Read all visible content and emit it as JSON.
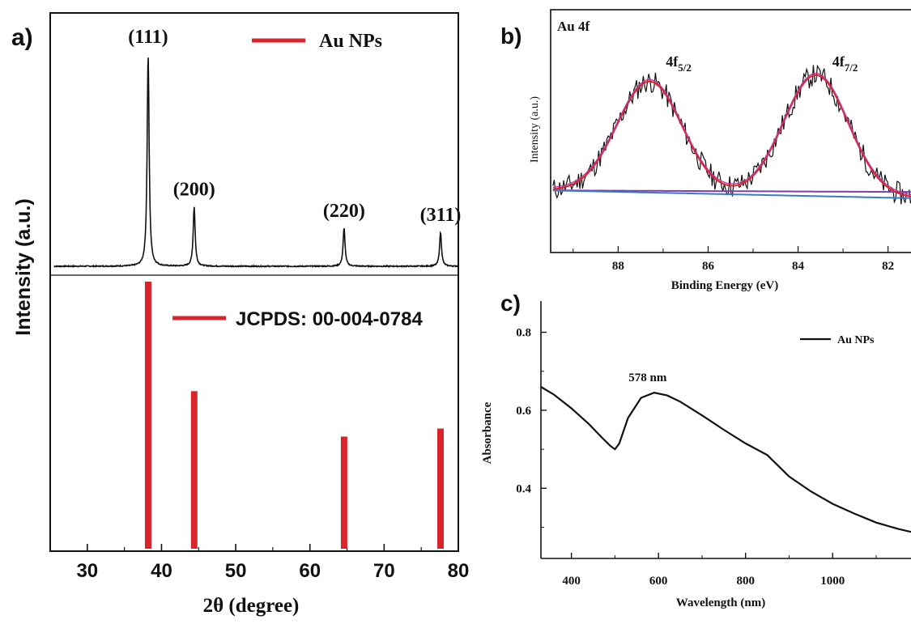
{
  "chart_data": [
    {
      "panel_label": "a)",
      "type": "line",
      "xlabel": "2θ (degree)",
      "ylabel": "Intensity (a.u.)",
      "xlim": [
        25,
        80
      ],
      "xticks": [
        30,
        40,
        50,
        60,
        70,
        80
      ],
      "x_tick_labels": [
        "30",
        "40",
        "50",
        "60",
        "70",
        "80"
      ],
      "series": [
        {
          "name": "Au NPs",
          "color": "#111111",
          "baseline": 0,
          "peaks": [
            {
              "x": 38.2,
              "y": 100,
              "label": "(111)"
            },
            {
              "x": 44.4,
              "y": 28,
              "label": "(200)"
            },
            {
              "x": 64.6,
              "y": 18,
              "label": "(220)"
            },
            {
              "x": 77.6,
              "y": 16,
              "label": "(311)"
            }
          ]
        },
        {
          "name": "JCPDS: 00-004-0784",
          "type": "stick",
          "color": "#d9242b",
          "x": [
            38.2,
            44.4,
            64.6,
            77.6
          ],
          "values": [
            100,
            59,
            42,
            45
          ]
        }
      ]
    },
    {
      "panel_label": "b)",
      "type": "line",
      "title": "Au 4f",
      "xlabel": "Binding Energy (eV)",
      "ylabel": "Intensity (a.u.)",
      "xlim": [
        89.5,
        81.4
      ],
      "x_reversed": true,
      "xticks": [
        88,
        86,
        84,
        82
      ],
      "x_tick_labels": [
        "88",
        "86",
        "84",
        "82"
      ],
      "annotations": [
        {
          "text": "4f",
          "sub": "5/2",
          "x": 87.3
        },
        {
          "text": "4f",
          "sub": "7/2",
          "x": 83.6
        }
      ],
      "series": [
        {
          "role": "raw",
          "color": "#111111",
          "peaks": [
            {
              "x": 87.3,
              "y": 0.74
            },
            {
              "x": 83.6,
              "y": 0.78
            }
          ],
          "baseline": [
            0.05,
            0.0
          ],
          "noise": 0.06
        },
        {
          "role": "fit",
          "color": "#d9242b",
          "peaks": [
            {
              "x": 87.3,
              "y": 0.74
            },
            {
              "x": 83.6,
              "y": 0.78
            }
          ]
        },
        {
          "role": "envelope",
          "color": "#c0369a",
          "peaks": [
            {
              "x": 87.3,
              "y": 0.74
            },
            {
              "x": 83.6,
              "y": 0.78
            }
          ]
        },
        {
          "role": "background",
          "color": "#3b78c8",
          "baseline": [
            0.05,
            0.0
          ]
        },
        {
          "role": "background-2",
          "color": "#7a3fb0",
          "baseline": [
            0.05,
            0.04
          ]
        }
      ]
    },
    {
      "panel_label": "c)",
      "type": "line",
      "xlabel": "Wavelength (nm)",
      "ylabel": "Absorbance",
      "xlim": [
        330,
        1180
      ],
      "ylim": [
        0.22,
        0.88
      ],
      "xticks": [
        400,
        600,
        800,
        1000
      ],
      "x_tick_labels": [
        "400",
        "600",
        "800",
        "1000"
      ],
      "yticks": [
        0.4,
        0.6,
        0.8
      ],
      "y_tick_labels": [
        "0.4",
        "0.6",
        "0.8"
      ],
      "legend": "top-right",
      "annotations": [
        {
          "text": "578 nm",
          "x": 590,
          "y": 0.645
        }
      ],
      "series": [
        {
          "name": "Au NPs",
          "color": "#111111",
          "x": [
            330,
            360,
            400,
            440,
            470,
            490,
            500,
            510,
            530,
            560,
            590,
            620,
            650,
            700,
            750,
            800,
            850,
            900,
            950,
            1000,
            1050,
            1100,
            1150,
            1180
          ],
          "y": [
            0.66,
            0.64,
            0.605,
            0.565,
            0.53,
            0.508,
            0.5,
            0.515,
            0.58,
            0.632,
            0.645,
            0.638,
            0.622,
            0.587,
            0.55,
            0.515,
            0.485,
            0.43,
            0.392,
            0.36,
            0.335,
            0.312,
            0.296,
            0.288
          ]
        }
      ]
    }
  ]
}
